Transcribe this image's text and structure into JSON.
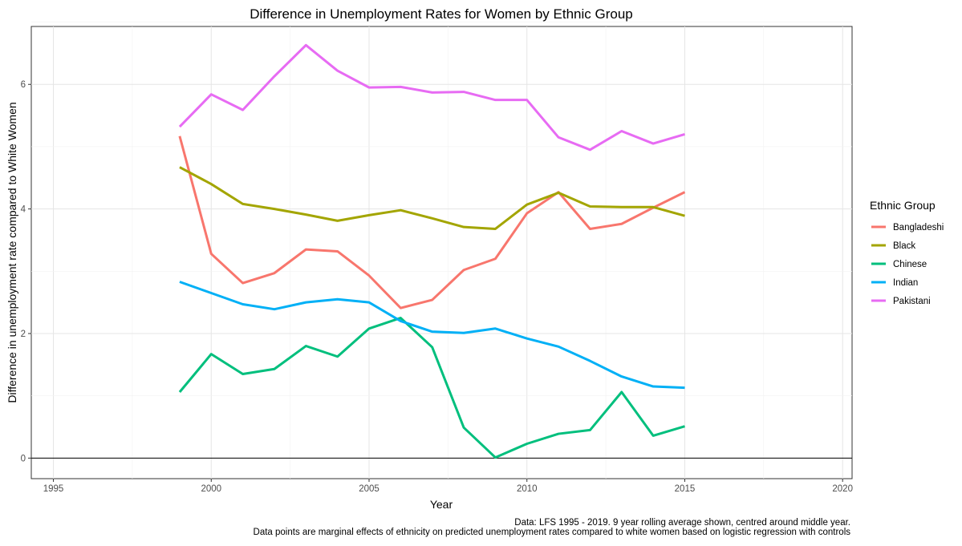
{
  "chart_data": {
    "type": "line",
    "title": "Difference in Unemployment Rates for Women by Ethnic Group",
    "xlabel": "Year",
    "ylabel": "Difference in unemployment rate compared to White Women",
    "xlim": [
      1994.3,
      2020.3
    ],
    "ylim": [
      -0.33,
      6.93
    ],
    "x_ticks": [
      1995,
      2000,
      2005,
      2010,
      2015,
      2020
    ],
    "y_ticks": [
      0,
      2,
      4,
      6
    ],
    "grid": true,
    "zero_line": true,
    "legend": {
      "title": "Ethnic Group",
      "position": "right"
    },
    "caption": [
      "Data: LFS 1995 - 2019. 9 year rolling average shown, centred around middle year.",
      "Data points are marginal effects of ethnicity on predicted unemployment rates compared to white women based on logistic regression with controls"
    ],
    "x": [
      1999,
      2000,
      2001,
      2002,
      2003,
      2004,
      2005,
      2006,
      2007,
      2008,
      2009,
      2010,
      2011,
      2012,
      2013,
      2014,
      2015
    ],
    "series": [
      {
        "name": "Bangladeshi",
        "color": "#F8766D",
        "values": [
          5.17,
          3.28,
          2.81,
          2.97,
          3.35,
          3.32,
          2.93,
          2.41,
          2.54,
          3.02,
          3.2,
          3.93,
          4.27,
          3.68,
          3.76,
          4.02,
          4.27
        ]
      },
      {
        "name": "Black",
        "color": "#A3A500",
        "values": [
          4.67,
          4.4,
          4.08,
          4.0,
          3.91,
          3.81,
          3.9,
          3.98,
          3.85,
          3.71,
          3.68,
          4.07,
          4.26,
          4.04,
          4.03,
          4.03,
          3.89
        ]
      },
      {
        "name": "Chinese",
        "color": "#00BF7D",
        "values": [
          1.06,
          1.67,
          1.35,
          1.43,
          1.8,
          1.63,
          2.08,
          2.25,
          1.78,
          0.49,
          0.01,
          0.23,
          0.39,
          0.45,
          1.06,
          0.36,
          0.51
        ]
      },
      {
        "name": "Indian",
        "color": "#00B0F6",
        "values": [
          2.83,
          2.65,
          2.47,
          2.39,
          2.5,
          2.55,
          2.5,
          2.2,
          2.03,
          2.01,
          2.08,
          1.92,
          1.79,
          1.56,
          1.31,
          1.15,
          1.13
        ]
      },
      {
        "name": "Pakistani",
        "color": "#E76BF3",
        "values": [
          5.32,
          5.84,
          5.59,
          6.13,
          6.63,
          6.22,
          5.95,
          5.96,
          5.87,
          5.88,
          5.75,
          5.75,
          5.15,
          4.95,
          5.25,
          5.05,
          5.2
        ]
      }
    ]
  }
}
